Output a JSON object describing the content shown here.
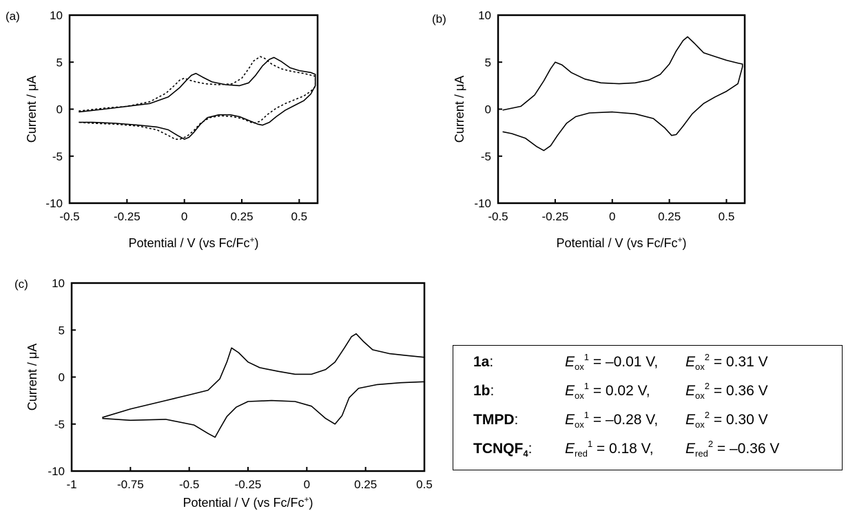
{
  "chart_data": [
    {
      "type": "line",
      "panel_label": "(a)",
      "xlabel": "Potential / V (vs Fc/Fc",
      "xlabel_sup": "+",
      "xlabel_tail": ")",
      "ylabel": "Current / μA",
      "xlim": [
        -0.5,
        0.58
      ],
      "ylim": [
        -10,
        10
      ],
      "xticks": [
        -0.5,
        -0.25,
        0,
        0.25,
        0.5
      ],
      "xtick_labels": [
        "-0.5",
        "-0.25",
        "0",
        "0.25",
        "0.5"
      ],
      "yticks": [
        10,
        5,
        0,
        -5,
        -10
      ],
      "ytick_labels": [
        "10",
        "5",
        "0",
        "-5",
        "-10"
      ],
      "grid": false,
      "series": [
        {
          "style": "solid",
          "x": [
            -0.46,
            -0.35,
            -0.25,
            -0.15,
            -0.07,
            -0.02,
            0.01,
            0.03,
            0.05,
            0.08,
            0.12,
            0.18,
            0.24,
            0.28,
            0.31,
            0.34,
            0.37,
            0.39,
            0.42,
            0.46,
            0.5,
            0.55,
            0.57,
            0.57,
            0.55,
            0.52,
            0.48,
            0.44,
            0.4,
            0.37,
            0.34,
            0.32,
            0.3,
            0.27,
            0.24,
            0.2,
            0.15,
            0.1,
            0.07,
            0.04,
            0.02,
            0.0,
            -0.03,
            -0.07,
            -0.12,
            -0.2,
            -0.3,
            -0.4,
            -0.46
          ],
          "y": [
            -0.3,
            0.0,
            0.3,
            0.6,
            1.3,
            2.3,
            3.1,
            3.6,
            3.8,
            3.4,
            2.9,
            2.6,
            2.5,
            2.8,
            3.6,
            4.6,
            5.3,
            5.5,
            5.1,
            4.4,
            4.1,
            3.9,
            3.7,
            2.5,
            1.6,
            0.9,
            0.4,
            -0.1,
            -0.8,
            -1.4,
            -1.7,
            -1.6,
            -1.4,
            -1.1,
            -0.8,
            -0.6,
            -0.6,
            -0.9,
            -1.6,
            -2.5,
            -3.0,
            -3.2,
            -2.8,
            -2.2,
            -1.9,
            -1.7,
            -1.5,
            -1.4,
            -1.4
          ]
        },
        {
          "style": "dashed",
          "x": [
            -0.46,
            -0.35,
            -0.25,
            -0.15,
            -0.08,
            -0.04,
            -0.02,
            0.0,
            0.02,
            0.05,
            0.09,
            0.15,
            0.21,
            0.25,
            0.28,
            0.3,
            0.33,
            0.35,
            0.38,
            0.42,
            0.47,
            0.52,
            0.57,
            0.57,
            0.55,
            0.52,
            0.48,
            0.44,
            0.4,
            0.36,
            0.33,
            0.3,
            0.28,
            0.25,
            0.21,
            0.16,
            0.11,
            0.07,
            0.04,
            0.01,
            -0.02,
            -0.04,
            -0.07,
            -0.12,
            -0.2,
            -0.3,
            -0.4,
            -0.46
          ],
          "y": [
            -0.2,
            0.1,
            0.3,
            0.8,
            1.7,
            2.6,
            3.1,
            3.3,
            3.1,
            2.9,
            2.7,
            2.6,
            2.7,
            3.3,
            4.3,
            5.1,
            5.6,
            5.4,
            4.8,
            4.3,
            4.0,
            3.8,
            3.5,
            2.4,
            1.9,
            1.4,
            1.0,
            0.6,
            0.1,
            -0.6,
            -1.3,
            -1.5,
            -1.3,
            -1.0,
            -0.8,
            -0.7,
            -0.9,
            -1.5,
            -2.3,
            -2.9,
            -3.2,
            -3.2,
            -2.8,
            -2.2,
            -1.8,
            -1.6,
            -1.5,
            -1.4
          ]
        }
      ]
    },
    {
      "type": "line",
      "panel_label": "(b)",
      "xlabel": "Potential / V (vs Fc/Fc",
      "xlabel_sup": "+",
      "xlabel_tail": ")",
      "ylabel": "Current / μA",
      "xlim": [
        -0.5,
        0.58
      ],
      "ylim": [
        -10,
        10
      ],
      "xticks": [
        -0.5,
        -0.25,
        0,
        0.25,
        0.5
      ],
      "xtick_labels": [
        "-0.5",
        "-0.25",
        "0",
        "0.25",
        "0.5"
      ],
      "yticks": [
        10,
        5,
        0,
        -5,
        -10
      ],
      "ytick_labels": [
        "10",
        "5",
        "0",
        "-5",
        "-10"
      ],
      "grid": false,
      "series": [
        {
          "style": "solid",
          "x": [
            -0.48,
            -0.4,
            -0.34,
            -0.3,
            -0.27,
            -0.25,
            -0.22,
            -0.18,
            -0.12,
            -0.05,
            0.03,
            0.1,
            0.16,
            0.21,
            0.25,
            0.28,
            0.31,
            0.33,
            0.36,
            0.4,
            0.45,
            0.5,
            0.55,
            0.57,
            0.57,
            0.55,
            0.5,
            0.45,
            0.4,
            0.35,
            0.31,
            0.28,
            0.26,
            0.23,
            0.18,
            0.1,
            0.0,
            -0.1,
            -0.16,
            -0.2,
            -0.24,
            -0.27,
            -0.3,
            -0.33,
            -0.38,
            -0.44,
            -0.48
          ],
          "y": [
            -0.1,
            0.3,
            1.5,
            3.0,
            4.3,
            5.0,
            4.7,
            3.9,
            3.2,
            2.8,
            2.7,
            2.8,
            3.1,
            3.7,
            4.8,
            6.2,
            7.3,
            7.7,
            7.0,
            6.0,
            5.6,
            5.2,
            4.9,
            4.8,
            4.5,
            2.7,
            1.9,
            1.3,
            0.6,
            -0.5,
            -1.8,
            -2.7,
            -2.8,
            -2.0,
            -1.0,
            -0.5,
            -0.3,
            -0.4,
            -0.8,
            -1.5,
            -2.8,
            -3.9,
            -4.4,
            -4.0,
            -3.1,
            -2.6,
            -2.4
          ]
        }
      ]
    },
    {
      "type": "line",
      "panel_label": "(c)",
      "xlabel": "Potential / V (vs Fc/Fc",
      "xlabel_sup": "+",
      "xlabel_tail": ")",
      "ylabel": "Current / μA",
      "xlim": [
        -1,
        0.5
      ],
      "ylim": [
        -10,
        10
      ],
      "xticks": [
        -1,
        -0.75,
        -0.5,
        -0.25,
        0,
        0.25,
        0.5
      ],
      "xtick_labels": [
        "-1",
        "-0.75",
        "-0.5",
        "-0.25",
        "0",
        "0.25",
        "0.5"
      ],
      "yticks": [
        10,
        5,
        0,
        -5,
        -10
      ],
      "ytick_labels": [
        "10",
        "5",
        "0",
        "-5",
        "-10"
      ],
      "grid": false,
      "series": [
        {
          "style": "solid",
          "x": [
            -0.87,
            -0.75,
            -0.6,
            -0.5,
            -0.42,
            -0.37,
            -0.34,
            -0.32,
            -0.29,
            -0.25,
            -0.2,
            -0.12,
            -0.05,
            0.02,
            0.08,
            0.12,
            0.16,
            0.19,
            0.21,
            0.24,
            0.28,
            0.35,
            0.42,
            0.5,
            0.5,
            0.4,
            0.3,
            0.22,
            0.18,
            0.15,
            0.12,
            0.08,
            0.02,
            -0.05,
            -0.15,
            -0.25,
            -0.3,
            -0.34,
            -0.37,
            -0.39,
            -0.42,
            -0.48,
            -0.6,
            -0.75,
            -0.87
          ],
          "y": [
            -4.3,
            -3.4,
            -2.5,
            -1.9,
            -1.4,
            -0.2,
            1.6,
            3.1,
            2.6,
            1.6,
            1.0,
            0.6,
            0.3,
            0.3,
            0.8,
            1.6,
            3.1,
            4.3,
            4.6,
            3.8,
            2.9,
            2.5,
            2.3,
            2.1,
            -0.5,
            -0.6,
            -0.8,
            -1.2,
            -2.2,
            -4.1,
            -5.0,
            -4.4,
            -3.1,
            -2.6,
            -2.5,
            -2.6,
            -3.2,
            -4.2,
            -5.5,
            -6.4,
            -6.0,
            -5.1,
            -4.5,
            -4.6,
            -4.4
          ]
        }
      ]
    }
  ],
  "legend_box": {
    "rows": [
      {
        "compound": "1a",
        "sep": ":",
        "e1_sym": "E",
        "e1_sub": "ox",
        "e1_sup": "1",
        "e1_val": " = –0.01 V,",
        "e2_sym": "E",
        "e2_sub": "ox",
        "e2_sup": "2",
        "e2_val": " = 0.31 V"
      },
      {
        "compound": "1b",
        "sep": ":",
        "e1_sym": "E",
        "e1_sub": "ox",
        "e1_sup": "1",
        "e1_val": " = 0.02 V,",
        "e2_sym": "E",
        "e2_sub": "ox",
        "e2_sup": "2",
        "e2_val": " = 0.36 V"
      },
      {
        "compound": "TMPD",
        "sep": ":",
        "e1_sym": "E",
        "e1_sub": "ox",
        "e1_sup": "1",
        "e1_val": " = –0.28 V,",
        "e2_sym": "E",
        "e2_sub": "ox",
        "e2_sup": "2",
        "e2_val": " = 0.30 V"
      },
      {
        "compound": "TCNQF",
        "compound_sub": "4",
        "sep": ":",
        "e1_sym": "E",
        "e1_sub": "red",
        "e1_sup": "1",
        "e1_val": " = 0.18 V,",
        "e2_sym": "E",
        "e2_sub": "red",
        "e2_sup": "2",
        "e2_val": " = –0.36 V"
      }
    ]
  }
}
